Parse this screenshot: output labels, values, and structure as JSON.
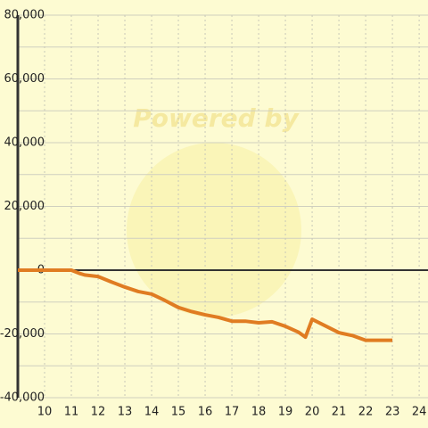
{
  "chart_data": {
    "type": "line",
    "watermark": "Powered by",
    "x": [
      9,
      10,
      11,
      11.3,
      11.5,
      12,
      12.5,
      13,
      13.5,
      14,
      14.5,
      15,
      15.5,
      16,
      16.5,
      17,
      17.5,
      18,
      18.5,
      19,
      19.5,
      19.75,
      20,
      20.5,
      21,
      21.5,
      22,
      22.5,
      23
    ],
    "series": [
      {
        "color": "#e07c22",
        "values": [
          0,
          0,
          0,
          -1000,
          -1500,
          -2000,
          -3700,
          -5300,
          -6700,
          -7500,
          -9500,
          -11700,
          -13000,
          -14000,
          -14800,
          -16000,
          -16000,
          -16500,
          -16200,
          -17600,
          -19500,
          -21000,
          -15400,
          -17500,
          -19600,
          -20500,
          -22000,
          -22000,
          -22000
        ]
      }
    ],
    "xlim": [
      9,
      24.33
    ],
    "xticks": [
      10,
      11,
      12,
      13,
      14,
      15,
      16,
      17,
      18,
      19,
      20,
      21,
      22,
      23,
      24
    ],
    "ylim": [
      -40000,
      80000
    ],
    "yticks": [
      {
        "value": -40000,
        "label": "-40,000"
      },
      {
        "value": -20000,
        "label": "-20,000"
      },
      0,
      {
        "value": 20000,
        "label": "20,000"
      },
      {
        "value": 40000,
        "label": "40,000"
      },
      {
        "value": 60000,
        "label": "60,000"
      },
      {
        "value": 80000,
        "label": "80,000"
      }
    ],
    "y_minor_ticks": [
      -30000,
      -10000,
      10000,
      30000,
      50000,
      70000
    ],
    "grid": true
  }
}
